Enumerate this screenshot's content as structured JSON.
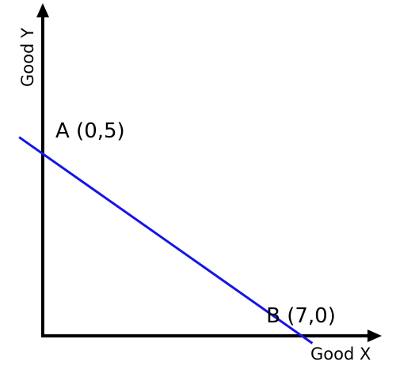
{
  "chart_data": {
    "type": "line",
    "xlabel": "Good X",
    "ylabel": "Good Y",
    "xlim": [
      0,
      7.7
    ],
    "ylim": [
      0,
      8.2
    ],
    "grid": false,
    "series": [
      {
        "points": [
          {
            "x": -0.65,
            "y": 5.35
          },
          {
            "x": 7.4,
            "y": -0.2
          }
        ],
        "color": "#1515e6"
      }
    ],
    "annotations": [
      {
        "label": "A (0,5)",
        "x": 0,
        "y": 5
      },
      {
        "label": "B (7,0)",
        "x": 7,
        "y": 0
      }
    ]
  }
}
